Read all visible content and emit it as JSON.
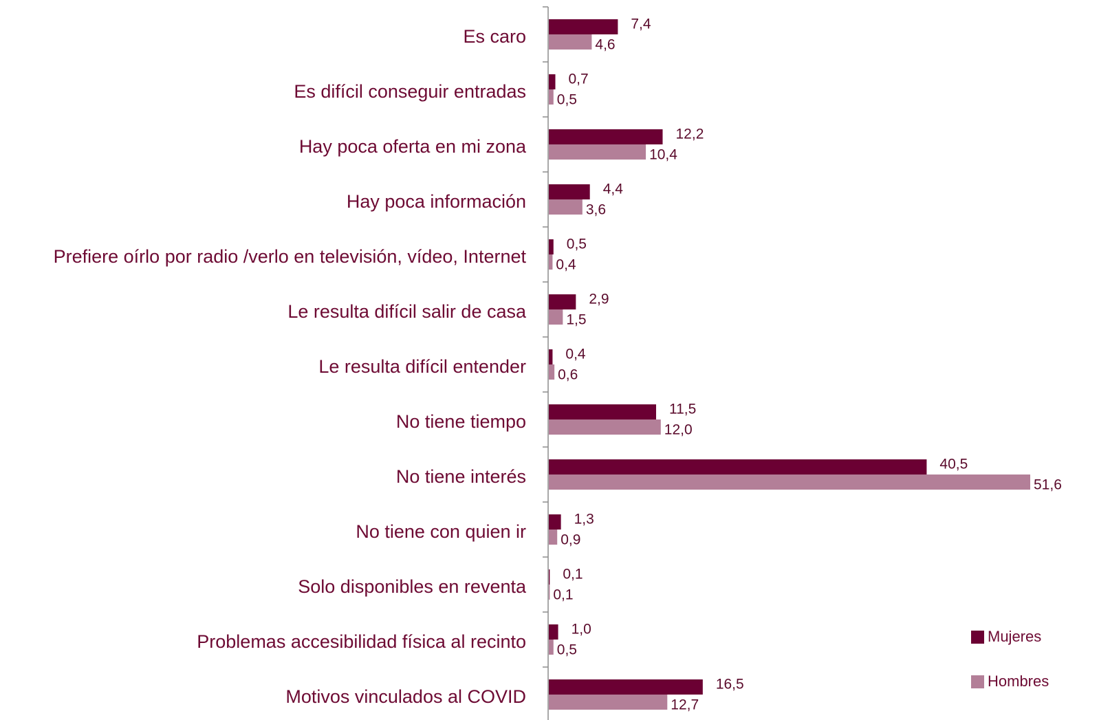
{
  "chart_data": {
    "type": "bar",
    "orientation": "horizontal",
    "categories": [
      "Es caro",
      "Es difícil conseguir entradas",
      "Hay poca oferta en mi zona",
      "Hay poca información",
      "Prefiere oírlo por radio /verlo en televisión, vídeo, Internet",
      "Le resulta difícil salir de casa",
      "Le resulta difícil entender",
      "No tiene tiempo",
      "No tiene interés",
      "No tiene con quien ir",
      "Solo disponibles en reventa",
      "Problemas accesibilidad física al recinto",
      "Motivos vinculados al COVID"
    ],
    "series": [
      {
        "name": "Mujeres",
        "color": "#6b0033",
        "values": [
          7.4,
          0.7,
          12.2,
          4.4,
          0.5,
          2.9,
          0.4,
          11.5,
          40.5,
          1.3,
          0.1,
          1.0,
          16.5
        ],
        "labels": [
          "7,4",
          "0,7",
          "12,2",
          "4,4",
          "0,5",
          "2,9",
          "0,4",
          "11,5",
          "40,5",
          "1,3",
          "0,1",
          "1,0",
          "16,5"
        ]
      },
      {
        "name": "Hombres",
        "color": "#b37f98",
        "values": [
          4.6,
          0.5,
          10.4,
          3.6,
          0.4,
          1.5,
          0.6,
          12.0,
          51.6,
          0.9,
          0.1,
          0.5,
          12.7
        ],
        "labels": [
          "4,6",
          "0,5",
          "10,4",
          "3,6",
          "0,4",
          "1,5",
          "0,6",
          "12,0",
          "51,6",
          "0,9",
          "0,1",
          "0,5",
          "12,7"
        ]
      }
    ],
    "xlim": [
      0,
      51.6
    ],
    "grid": false,
    "legend_position": "bottom-right",
    "title": "",
    "xlabel": "",
    "ylabel": ""
  }
}
